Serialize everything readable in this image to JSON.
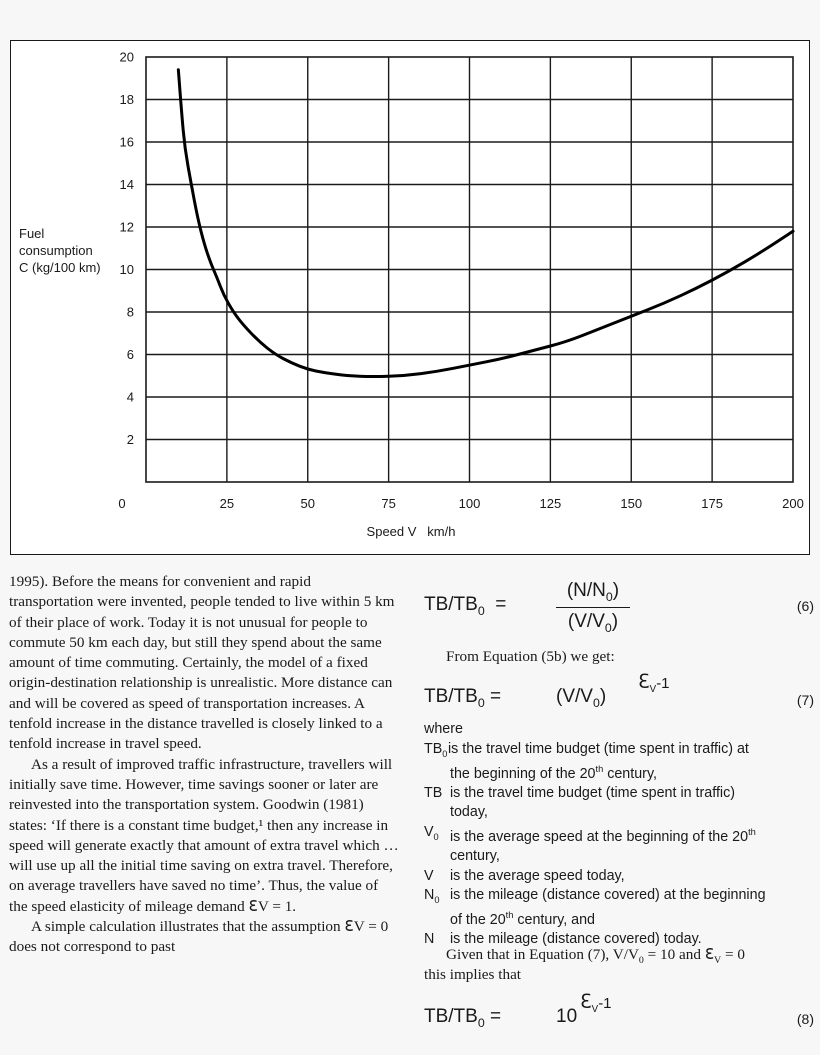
{
  "chart_data": {
    "type": "line",
    "ylabel": [
      "Fuel",
      "consumption",
      "C (kg/100 km)"
    ],
    "xlabel": "Speed V   km/h",
    "xlim": [
      0,
      200
    ],
    "ylim": [
      0,
      20
    ],
    "x_ticks": [
      0,
      25,
      50,
      75,
      100,
      125,
      150,
      175,
      200
    ],
    "y_ticks": [
      2,
      4,
      6,
      8,
      10,
      12,
      14,
      16,
      18,
      20
    ],
    "grid": true,
    "series": [
      {
        "color": "#000000",
        "points": [
          [
            10,
            19.4
          ],
          [
            11,
            17.4
          ],
          [
            12,
            15.7
          ],
          [
            14,
            14.0
          ],
          [
            16,
            12.4
          ],
          [
            18,
            11.2
          ],
          [
            20,
            10.3
          ],
          [
            22,
            9.6
          ],
          [
            24,
            8.8
          ],
          [
            27,
            8.0
          ],
          [
            30,
            7.4
          ],
          [
            35,
            6.6
          ],
          [
            40,
            6.0
          ],
          [
            45,
            5.6
          ],
          [
            50,
            5.3
          ],
          [
            55,
            5.15
          ],
          [
            62,
            5.0
          ],
          [
            70,
            4.95
          ],
          [
            80,
            5.0
          ],
          [
            90,
            5.2
          ],
          [
            100,
            5.5
          ],
          [
            110,
            5.8
          ],
          [
            120,
            6.2
          ],
          [
            130,
            6.6
          ],
          [
            140,
            7.2
          ],
          [
            150,
            7.8
          ],
          [
            160,
            8.4
          ],
          [
            170,
            9.1
          ],
          [
            180,
            9.9
          ],
          [
            190,
            10.8
          ],
          [
            200,
            11.8
          ]
        ]
      }
    ]
  },
  "left_column": [
    {
      "indent": false,
      "text": "1995). Before the means for convenient and rapid transportation were invented, people tended to live within 5 km of their place of work. Today it is not unusual for people to commute 50 km each day, but still they spend about the same amount of time commuting. Certainly, the model of a fixed origin-destination relationship is unrealistic. More distance can and will be covered as speed of transportation increases. A tenfold increase in the distance travelled is closely linked to a tenfold increase in travel speed."
    },
    {
      "indent": true,
      "text": "As a result of improved traffic infrastructure, travellers will initially save time. However, time savings sooner or later are reinvested into the transportation system. Goodwin (1981) states: ‘If there is a constant time budget,¹ then any increase in speed will generate exactly that amount of extra travel which … will use up all the initial time saving on extra travel. Therefore, on average travellers have saved no time’. Thus, the value of the speed elasticity of mileage demand ℇV = 1."
    },
    {
      "indent": true,
      "text": "A simple calculation illustrates that the assumption ℇV = 0 does not correspond to past"
    }
  ],
  "equations": {
    "eq6": {
      "lhs": "TB/TB",
      "lhs_sub": "0",
      "equals": "=",
      "num": "(N/N",
      "num_sub": "0",
      "num_close": ")",
      "den": "(V/V",
      "den_sub": "0",
      "den_close": ")",
      "number": "(6)"
    },
    "from_text": "From Equation (5b) we get:",
    "eq7": {
      "lhs": "TB/TB",
      "lhs_sub": "0",
      "equals": "=",
      "rhs": "(V/V",
      "rhs_sub": "0",
      "rhs_close": ")",
      "exp": "ℇ",
      "exp_sub": "V",
      "exp_tail": "-1",
      "number": "(7)"
    },
    "where": "where",
    "given_text_1": "Given that in Equation (7), V/V",
    "given_text_sub": "0",
    "given_text_2": " = 10 and ℇ",
    "given_text_sub2": "V",
    "given_text_3": " = 0",
    "given_text_line2": "this implies that",
    "eq8": {
      "lhs": "TB/TB",
      "lhs_sub": "0",
      "equals": "=",
      "rhs": "10",
      "exp": "ℇ",
      "exp_sub": "V",
      "exp_tail": "-1",
      "number": "(8)"
    }
  },
  "definitions": [
    {
      "sym": "TB",
      "sym_sub": "0",
      "text": "is the travel time budget (time spent in traffic) at",
      "text2a": "the beginning of the 20",
      "text2sup": "th",
      "text2b": " century,"
    },
    {
      "sym": "TB",
      "sym_sub": "",
      "text": " is the travel time budget (time spent in traffic)",
      "text2a": "today,",
      "text2sup": "",
      "text2b": ""
    },
    {
      "sym": "V",
      "sym_sub": "0",
      "text": "is the average speed at the beginning of the 20",
      "text_sup": "th",
      "text2a": "century,",
      "text2sup": "",
      "text2b": ""
    },
    {
      "sym": "V",
      "sym_sub": "",
      "text": "is the average speed today,",
      "text2a": "",
      "text2sup": "",
      "text2b": ""
    },
    {
      "sym": "N",
      "sym_sub": "0",
      "text": "is the mileage (distance covered) at the beginning",
      "text2a": "of the 20",
      "text2sup": "th",
      "text2b": " century, and"
    },
    {
      "sym": "N",
      "sym_sub": "",
      "text": "is the mileage (distance covered) today.",
      "text2a": "",
      "text2sup": "",
      "text2b": ""
    }
  ]
}
